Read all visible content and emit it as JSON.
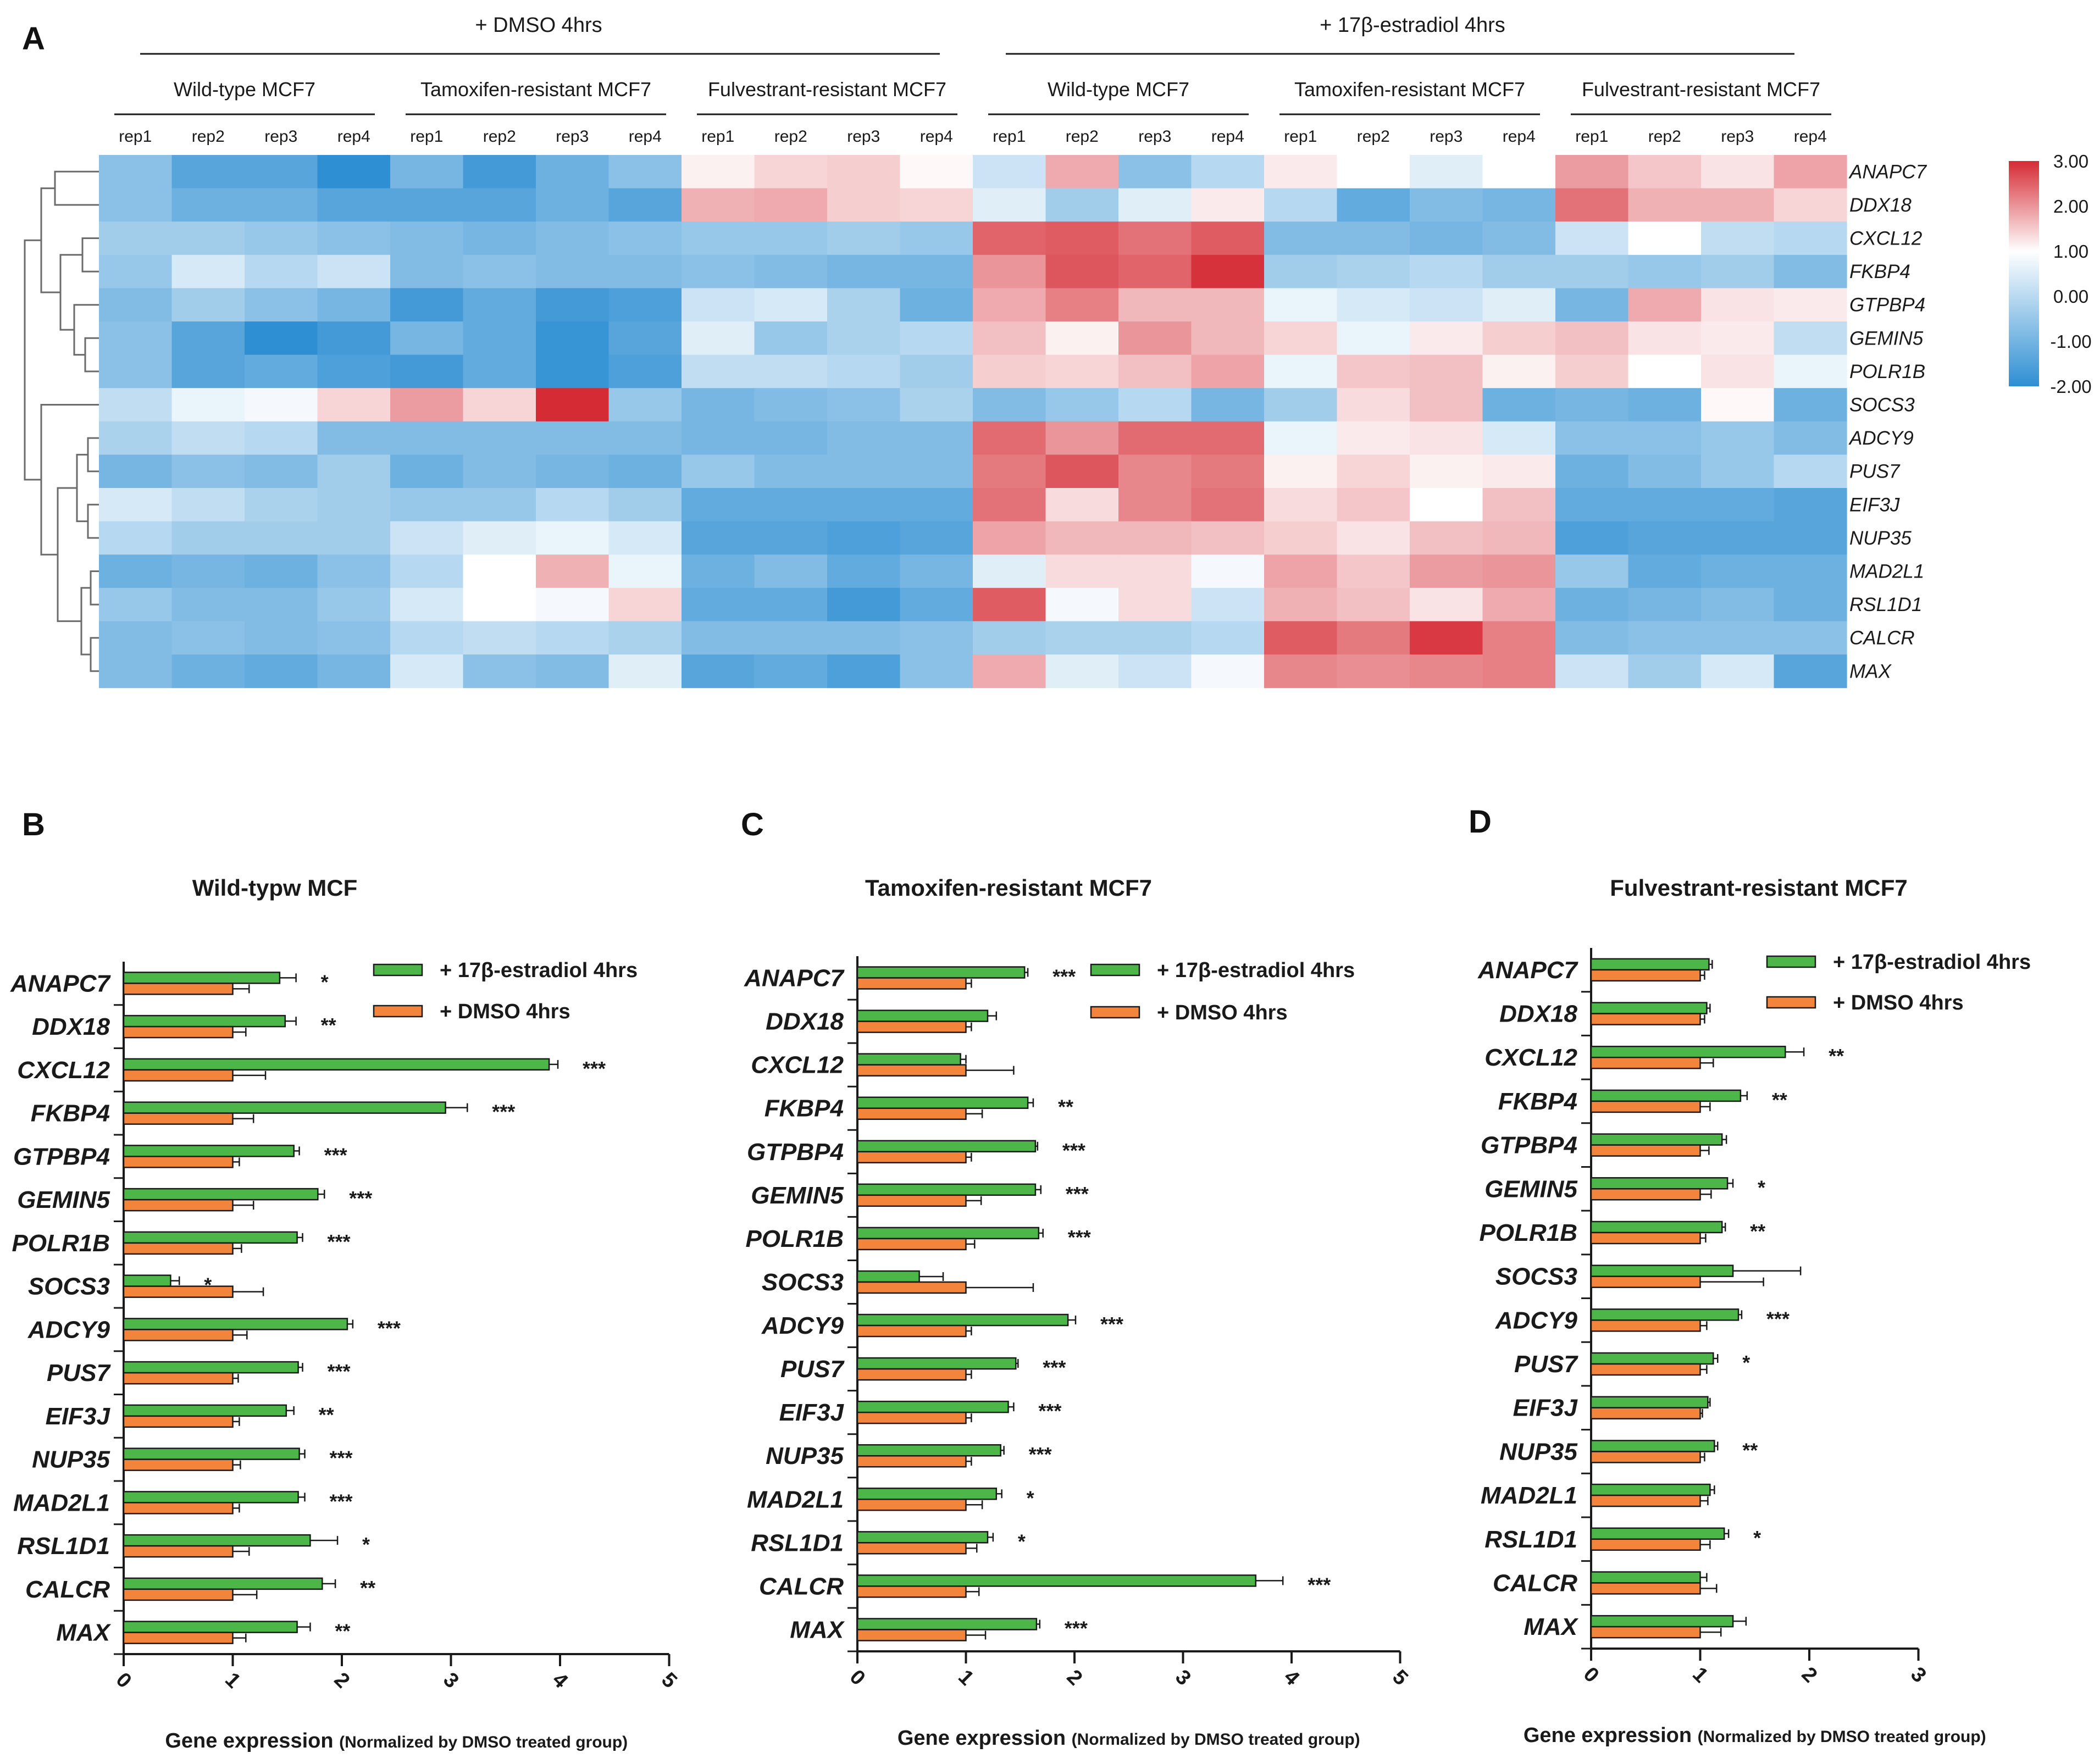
{
  "panel_labels": {
    "A": "A",
    "B": "B",
    "C": "C",
    "D": "D"
  },
  "colors": {
    "estradiol_bar": "#4cb649",
    "dmso_bar": "#f2843c",
    "heat_high": "#d52b34",
    "heat_mid": "#ffffff",
    "heat_low": "#2e8fd3",
    "text": "#1a1a1a",
    "dendrogram": "#6b6b6b"
  },
  "heatmap": {
    "treatments": [
      "+ DMSO 4hrs",
      "+ 17β-estradiol  4hrs"
    ],
    "groups": [
      "Wild-type MCF7",
      "Tamoxifen-resistant MCF7",
      "Fulvestrant-resistant MCF7",
      "Wild-type MCF7",
      "Tamoxifen-resistant MCF7",
      "Fulvestrant-resistant MCF7"
    ],
    "reps": [
      "rep1",
      "rep2",
      "rep3",
      "rep4"
    ],
    "genes": [
      "ANAPC7",
      "DDX18",
      "CXCL12",
      "FKBP4",
      "GTPBP4",
      "GEMIN5",
      "POLR1B",
      "SOCS3",
      "ADCY9",
      "PUS7",
      "EIF3J",
      "NUP35",
      "MAD2L1",
      "RSL1D1",
      "CALCR",
      "MAX"
    ],
    "colorbar_labels": [
      "3.00",
      "2.00",
      "1.00",
      "0.00",
      "-1.00",
      "-2.00"
    ],
    "range": [
      -2,
      3
    ],
    "values": [
      [
        -1.1,
        -1.6,
        -1.6,
        -2.0,
        -1.3,
        -1.8,
        -1.4,
        -1.1,
        0.2,
        0.6,
        0.7,
        0.1,
        -0.5,
        1.2,
        -1.1,
        -0.7,
        0.3,
        0.0,
        -0.3,
        0.0,
        1.4,
        0.8,
        0.4,
        1.3
      ],
      [
        -1.1,
        -1.4,
        -1.4,
        -1.6,
        -1.6,
        -1.6,
        -1.4,
        -1.6,
        1.1,
        1.2,
        0.7,
        0.6,
        -0.3,
        -0.9,
        -0.3,
        0.3,
        -0.7,
        -1.5,
        -1.2,
        -1.3,
        2.0,
        1.1,
        1.1,
        0.6
      ],
      [
        -0.9,
        -0.9,
        -1.0,
        -1.1,
        -1.2,
        -1.3,
        -1.2,
        -1.1,
        -1.0,
        -1.0,
        -0.9,
        -1.0,
        2.2,
        2.3,
        2.0,
        2.3,
        -1.2,
        -1.2,
        -1.3,
        -1.2,
        -0.5,
        0.0,
        -0.6,
        -0.7
      ],
      [
        -1.0,
        -0.4,
        -0.7,
        -0.5,
        -1.2,
        -1.1,
        -1.2,
        -1.2,
        -1.1,
        -1.2,
        -1.3,
        -1.3,
        1.5,
        2.4,
        2.2,
        2.9,
        -0.9,
        -0.8,
        -0.7,
        -0.9,
        -0.9,
        -1.0,
        -0.9,
        -1.2
      ],
      [
        -1.2,
        -0.9,
        -1.1,
        -1.3,
        -1.8,
        -1.5,
        -1.8,
        -1.7,
        -0.5,
        -0.4,
        -0.8,
        -1.4,
        1.2,
        1.8,
        1.0,
        1.0,
        -0.2,
        -0.4,
        -0.5,
        -0.3,
        -1.3,
        1.2,
        0.4,
        0.3
      ],
      [
        -1.1,
        -1.6,
        -2.1,
        -1.8,
        -1.3,
        -1.5,
        -1.9,
        -1.6,
        -0.3,
        -1.0,
        -0.8,
        -0.7,
        0.9,
        0.2,
        1.5,
        1.0,
        0.6,
        -0.2,
        0.3,
        0.7,
        0.9,
        0.4,
        0.3,
        -0.6
      ],
      [
        -1.1,
        -1.6,
        -1.5,
        -1.7,
        -1.8,
        -1.5,
        -1.9,
        -1.7,
        -0.6,
        -0.6,
        -0.7,
        -0.9,
        0.7,
        0.6,
        0.9,
        1.3,
        -0.2,
        0.8,
        0.9,
        0.2,
        0.7,
        0.0,
        0.4,
        -0.2
      ],
      [
        -0.6,
        -0.2,
        -0.1,
        0.6,
        1.4,
        0.6,
        3.0,
        -1.0,
        -1.3,
        -1.2,
        -1.1,
        -0.8,
        -1.2,
        -1.0,
        -0.7,
        -1.3,
        -0.9,
        0.5,
        0.9,
        -1.4,
        -1.3,
        -1.4,
        0.1,
        -1.4
      ],
      [
        -0.8,
        -0.6,
        -0.7,
        -1.2,
        -1.2,
        -1.2,
        -1.2,
        -1.2,
        -1.3,
        -1.3,
        -1.2,
        -1.2,
        2.1,
        1.5,
        2.1,
        2.1,
        -0.2,
        0.3,
        0.4,
        -0.4,
        -1.1,
        -1.1,
        -1.0,
        -1.2
      ],
      [
        -1.3,
        -1.1,
        -1.2,
        -0.9,
        -1.4,
        -1.2,
        -1.3,
        -1.4,
        -1.0,
        -1.2,
        -1.2,
        -1.2,
        1.9,
        2.4,
        1.7,
        1.9,
        0.2,
        0.6,
        0.2,
        0.3,
        -1.4,
        -1.2,
        -1.0,
        -0.7
      ],
      [
        -0.4,
        -0.6,
        -0.8,
        -0.9,
        -1.0,
        -1.0,
        -0.7,
        -0.9,
        -1.5,
        -1.5,
        -1.5,
        -1.5,
        2.0,
        0.5,
        1.7,
        2.0,
        0.5,
        0.8,
        0.0,
        0.9,
        -1.5,
        -1.5,
        -1.5,
        -1.6
      ],
      [
        -0.7,
        -0.9,
        -0.9,
        -0.9,
        -0.5,
        -0.3,
        -0.2,
        -0.4,
        -1.6,
        -1.6,
        -1.7,
        -1.6,
        1.3,
        1.0,
        1.0,
        0.9,
        0.7,
        0.4,
        0.9,
        1.0,
        -1.7,
        -1.6,
        -1.6,
        -1.6
      ],
      [
        -1.4,
        -1.3,
        -1.4,
        -1.1,
        -0.7,
        0.0,
        1.1,
        -0.2,
        -1.4,
        -1.2,
        -1.5,
        -1.3,
        -0.3,
        0.5,
        0.5,
        -0.1,
        1.3,
        0.8,
        1.4,
        1.5,
        -1.0,
        -1.5,
        -1.4,
        -1.4
      ],
      [
        -1.0,
        -1.2,
        -1.2,
        -1.0,
        -0.4,
        0.0,
        -0.1,
        0.6,
        -1.5,
        -1.5,
        -1.8,
        -1.5,
        2.3,
        -0.1,
        0.5,
        -0.5,
        1.1,
        0.9,
        0.4,
        1.2,
        -1.4,
        -1.3,
        -1.2,
        -1.4
      ],
      [
        -1.2,
        -1.1,
        -1.2,
        -1.1,
        -0.7,
        -0.6,
        -0.7,
        -0.8,
        -1.2,
        -1.2,
        -1.2,
        -1.1,
        -0.9,
        -0.8,
        -0.8,
        -0.7,
        2.3,
        1.9,
        2.8,
        1.8,
        -1.2,
        -1.1,
        -1.1,
        -1.1
      ],
      [
        -1.2,
        -1.4,
        -1.5,
        -1.3,
        -0.4,
        -1.1,
        -1.2,
        -0.3,
        -1.6,
        -1.5,
        -1.7,
        -1.1,
        1.2,
        -0.3,
        -0.5,
        -0.1,
        1.7,
        1.6,
        1.7,
        1.8,
        -0.5,
        -0.9,
        -0.4,
        -1.6
      ]
    ]
  },
  "chart_data": [
    {
      "type": "bar",
      "title": "Wild-typw MCF",
      "xlabel": "Gene expression",
      "xlabel_note": "(Normalized by DMSO treated group)",
      "xlim": [
        0,
        5
      ],
      "ticks": [
        0,
        1,
        2,
        3,
        4,
        5
      ],
      "tick_labels": [
        "0",
        "1",
        "2",
        "3",
        "4",
        "5"
      ],
      "orientation": "horizontal",
      "categories": [
        "ANAPC7",
        "DDX18",
        "CXCL12",
        "FKBP4",
        "GTPBP4",
        "GEMIN5",
        "POLR1B",
        "SOCS3",
        "ADCY9",
        "PUS7",
        "EIF3J",
        "NUP35",
        "MAD2L1",
        "RSL1D1",
        "CALCR",
        "MAX"
      ],
      "series": [
        {
          "name": "+ 17β-estradiol 4hrs",
          "values": [
            1.43,
            1.48,
            3.9,
            2.95,
            1.56,
            1.78,
            1.59,
            0.43,
            2.05,
            1.6,
            1.49,
            1.61,
            1.6,
            1.71,
            1.82,
            1.59
          ],
          "errors": [
            0.15,
            0.1,
            0.08,
            0.2,
            0.05,
            0.06,
            0.05,
            0.08,
            0.05,
            0.04,
            0.07,
            0.05,
            0.06,
            0.25,
            0.12,
            0.12
          ]
        },
        {
          "name": "+ DMSO 4hrs",
          "values": [
            1,
            1,
            1,
            1,
            1,
            1,
            1,
            1,
            1,
            1,
            1,
            1,
            1,
            1,
            1,
            1
          ],
          "errors": [
            0.15,
            0.12,
            0.3,
            0.19,
            0.06,
            0.19,
            0.08,
            0.28,
            0.13,
            0.05,
            0.06,
            0.07,
            0.06,
            0.15,
            0.22,
            0.12
          ]
        }
      ],
      "annotations": [
        "*",
        "**",
        "***",
        "***",
        "***",
        "***",
        "***",
        "*",
        "***",
        "***",
        "**",
        "***",
        "***",
        "*",
        "**",
        "**"
      ]
    },
    {
      "type": "bar",
      "title": "Tamoxifen-resistant MCF7",
      "xlabel": "Gene expression",
      "xlabel_note": "(Normalized by DMSO treated group)",
      "xlim": [
        0,
        5
      ],
      "ticks": [
        0,
        1,
        2,
        3,
        4,
        5
      ],
      "tick_labels": [
        "0",
        "1",
        "2",
        "3",
        "4",
        "5"
      ],
      "orientation": "horizontal",
      "categories": [
        "ANAPC7",
        "DDX18",
        "CXCL12",
        "FKBP4",
        "GTPBP4",
        "GEMIN5",
        "POLR1B",
        "SOCS3",
        "ADCY9",
        "PUS7",
        "EIF3J",
        "NUP35",
        "MAD2L1",
        "RSL1D1",
        "CALCR",
        "MAX"
      ],
      "series": [
        {
          "name": "+ 17β-estradiol 4hrs",
          "values": [
            1.54,
            1.2,
            0.95,
            1.57,
            1.64,
            1.64,
            1.67,
            0.57,
            1.94,
            1.46,
            1.39,
            1.32,
            1.28,
            1.2,
            3.67,
            1.65
          ],
          "errors": [
            0.03,
            0.08,
            0.05,
            0.05,
            0.02,
            0.05,
            0.04,
            0.22,
            0.07,
            0.02,
            0.05,
            0.03,
            0.05,
            0.05,
            0.25,
            0.03
          ]
        },
        {
          "name": "+ DMSO 4hrs",
          "values": [
            1,
            1,
            1,
            1,
            1,
            1,
            1,
            1,
            1,
            1,
            1,
            1,
            1,
            1,
            1,
            1
          ],
          "errors": [
            0.05,
            0.05,
            0.44,
            0.15,
            0.05,
            0.14,
            0.08,
            0.62,
            0.05,
            0.05,
            0.05,
            0.05,
            0.15,
            0.1,
            0.12,
            0.18
          ]
        }
      ],
      "annotations": [
        "***",
        "",
        "",
        "**",
        "***",
        "***",
        "***",
        "",
        "***",
        "***",
        "***",
        "***",
        "*",
        "*",
        "***",
        "***"
      ]
    },
    {
      "type": "bar",
      "title": "Fulvestrant-resistant MCF7",
      "xlabel": "Gene expression",
      "xlabel_note": "(Normalized by DMSO treated group)",
      "xlim": [
        0,
        3
      ],
      "ticks": [
        0,
        1,
        2,
        3
      ],
      "tick_labels": [
        "0",
        "1",
        "2",
        "3"
      ],
      "orientation": "horizontal",
      "categories": [
        "ANAPC7",
        "DDX18",
        "CXCL12",
        "FKBP4",
        "GTPBP4",
        "GEMIN5",
        "POLR1B",
        "SOCS3",
        "ADCY9",
        "PUS7",
        "EIF3J",
        "NUP35",
        "MAD2L1",
        "RSL1D1",
        "CALCR",
        "MAX"
      ],
      "series": [
        {
          "name": "+ 17β-estradiol 4hrs",
          "values": [
            1.08,
            1.06,
            1.78,
            1.37,
            1.2,
            1.25,
            1.2,
            1.3,
            1.35,
            1.12,
            1.07,
            1.13,
            1.09,
            1.22,
            1.0,
            1.3
          ],
          "errors": [
            0.03,
            0.03,
            0.17,
            0.06,
            0.04,
            0.05,
            0.03,
            0.62,
            0.03,
            0.04,
            0.02,
            0.03,
            0.04,
            0.04,
            0.06,
            0.12
          ]
        },
        {
          "name": "+ DMSO 4hrs",
          "values": [
            1,
            1,
            1,
            1,
            1,
            1,
            1,
            1,
            1,
            1,
            1,
            1,
            1,
            1,
            1,
            1
          ],
          "errors": [
            0.04,
            0.04,
            0.12,
            0.09,
            0.08,
            0.1,
            0.05,
            0.58,
            0.06,
            0.06,
            0.02,
            0.04,
            0.07,
            0.09,
            0.15,
            0.19
          ]
        }
      ],
      "annotations": [
        "",
        "",
        "**",
        "**",
        "",
        "*",
        "**",
        "",
        "***",
        "*",
        "",
        "**",
        "",
        "*",
        "",
        ""
      ]
    }
  ]
}
